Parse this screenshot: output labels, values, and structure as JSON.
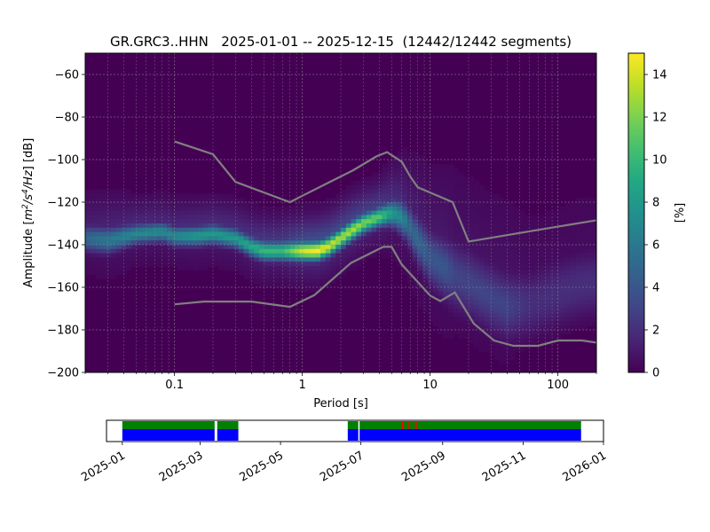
{
  "chart_data": [
    {
      "type": "heatmap",
      "title": "GR.GRC3..HHN   2025-01-01 -- 2025-12-15  (12442/12442 segments)",
      "xlabel": "Period [s]",
      "ylabel_parts": {
        "text1": "Amplitude [",
        "m": "m",
        "sup2": "2",
        "slash_s": "/s",
        "sup4": "4",
        "slash_hz": "/Hz",
        "text2": "] [dB]"
      },
      "xscale": "log",
      "xlim": [
        0.02,
        200
      ],
      "ylim": [
        -200,
        -50
      ],
      "xticks": [
        {
          "value": 0.1,
          "label": "0.1"
        },
        {
          "value": 1,
          "label": "1"
        },
        {
          "value": 10,
          "label": "10"
        },
        {
          "value": 100,
          "label": "100"
        }
      ],
      "yticks": [
        {
          "value": -60,
          "label": "−60"
        },
        {
          "value": -80,
          "label": "−80"
        },
        {
          "value": -100,
          "label": "−100"
        },
        {
          "value": -120,
          "label": "−120"
        },
        {
          "value": -140,
          "label": "−140"
        },
        {
          "value": -160,
          "label": "−160"
        },
        {
          "value": -180,
          "label": "−180"
        },
        {
          "value": -200,
          "label": "−200"
        }
      ],
      "grid": true,
      "colormap": "viridis",
      "colorbar": {
        "label": "[%]",
        "range": [
          0,
          15
        ],
        "ticks": [
          {
            "value": 0,
            "label": "0"
          },
          {
            "value": 2,
            "label": "2"
          },
          {
            "value": 4,
            "label": "4"
          },
          {
            "value": 6,
            "label": "6"
          },
          {
            "value": 8,
            "label": "8"
          },
          {
            "value": 10,
            "label": "10"
          },
          {
            "value": 12,
            "label": "12"
          },
          {
            "value": 14,
            "label": "14"
          }
        ]
      },
      "density_ridge": {
        "period_s": [
          0.02,
          0.03,
          0.05,
          0.08,
          0.1,
          0.15,
          0.2,
          0.3,
          0.4,
          0.5,
          0.7,
          1.0,
          1.3,
          1.6,
          2.0,
          2.5,
          3.0,
          4.0,
          5.0,
          6.0,
          7.0,
          8.0,
          10.0,
          13.0,
          16.0,
          20.0,
          30.0,
          40.0,
          60.0,
          100.0,
          150.0,
          200.0
        ],
        "mode_db": [
          -137,
          -138,
          -135,
          -134,
          -136,
          -136,
          -135,
          -137,
          -141,
          -143,
          -143,
          -143,
          -143,
          -141,
          -137,
          -133,
          -130,
          -127,
          -125,
          -127,
          -132,
          -138,
          -146,
          -151,
          -155,
          -158,
          -165,
          -169,
          -168,
          -163,
          -159,
          -158
        ],
        "peak_pct": [
          5,
          6,
          7,
          7,
          7,
          8,
          8,
          8,
          9,
          10,
          10,
          14,
          15,
          14,
          13,
          13,
          12,
          11,
          8,
          7,
          5,
          5,
          4,
          4,
          3,
          3,
          3,
          3,
          2,
          2,
          2,
          2
        ],
        "spread_db": [
          4,
          4,
          3,
          3,
          3,
          3,
          3,
          3,
          3,
          3,
          3,
          3,
          3,
          3,
          3,
          3,
          3,
          3,
          4,
          5,
          6,
          7,
          8,
          9,
          10,
          10,
          10,
          10,
          10,
          10,
          10,
          10
        ]
      },
      "series": [
        {
          "name": "",
          "x": [
            0.1,
            0.2,
            0.3,
            0.8,
            1.0,
            2.5,
            3.8,
            4.6,
            6.0,
            7.0,
            8.0,
            15.0,
            20.0,
            50.0,
            100.0,
            200.0
          ],
          "y": [
            -91.5,
            -97.5,
            -110.5,
            -120,
            -117,
            -105,
            -98.5,
            -96.5,
            -101,
            -108,
            -113,
            -120,
            -138.5,
            -134.5,
            -131.5,
            -128.5
          ]
        },
        {
          "name": "",
          "x": [
            0.1,
            0.17,
            0.4,
            0.8,
            1.24,
            2.4,
            4.3,
            5.0,
            6.0,
            10.0,
            12.0,
            15.6,
            21.9,
            31.6,
            45.0,
            70.0,
            100.0,
            154.0,
            200.0
          ],
          "y": [
            -168,
            -166.7,
            -166.7,
            -169.2,
            -163.7,
            -148.6,
            -141,
            -141,
            -149.3,
            -163.9,
            -166.5,
            -162.4,
            -177,
            -185,
            -187.5,
            -187.5,
            -185,
            -185,
            -186
          ]
        }
      ],
      "colors": {
        "background": "#440154",
        "model_lines": "#808080",
        "grid": "#8c8c8c"
      }
    },
    {
      "type": "timeline",
      "xticks": [
        {
          "value": "2025-01",
          "label": "2025-01"
        },
        {
          "value": "2025-03",
          "label": "2025-03"
        },
        {
          "value": "2025-05",
          "label": "2025-05"
        },
        {
          "value": "2025-07",
          "label": "2025-07"
        },
        {
          "value": "2025-09",
          "label": "2025-09"
        },
        {
          "value": "2025-11",
          "label": "2025-11"
        },
        {
          "value": "2026-01",
          "label": "2026-01"
        }
      ],
      "xlim": [
        "2024-12-20",
        "2026-01-01"
      ],
      "data_coverage": [
        [
          "2025-01-01",
          "2025-03-12"
        ],
        [
          "2025-03-14",
          "2025-03-30"
        ],
        [
          "2025-06-21",
          "2025-06-29"
        ],
        [
          "2025-06-30",
          "2025-12-15"
        ]
      ],
      "psd_used": [
        [
          "2025-01-01",
          "2025-03-12"
        ],
        [
          "2025-03-14",
          "2025-03-30"
        ],
        [
          "2025-06-21",
          "2025-06-29"
        ],
        [
          "2025-06-30",
          "2025-12-15"
        ]
      ],
      "gaps_marked": [
        "2025-08-01",
        "2025-08-06",
        "2025-08-11"
      ],
      "colors": {
        "data": "#0000ff",
        "psd": "#008000",
        "gap": "#ff0000"
      }
    }
  ]
}
